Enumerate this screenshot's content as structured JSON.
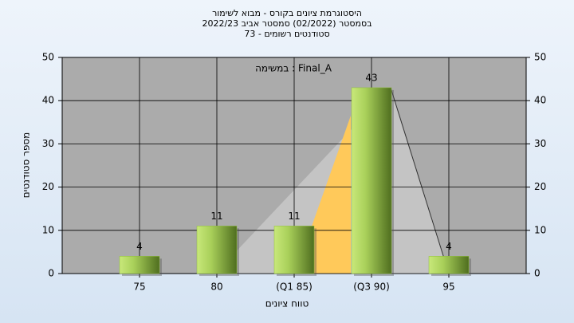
{
  "chart_data": {
    "type": "bar",
    "title_lines": [
      "היסטוגרמת ציונים בקורס - מבוא לשימור",
      "בסמסטר  (02/2022)  סמסטר אביב 2022/23",
      "סטודנטים רשומים - 73"
    ],
    "annotation": "במשימה : Final_A",
    "x_label": "טווח ציונים",
    "y_label": "מספר סטודנטים",
    "categories": [
      "75",
      "80",
      "(Q1 85)",
      "(Q3 90)",
      "95"
    ],
    "values": [
      4,
      11,
      11,
      43,
      4
    ],
    "color": "#8fbf3a",
    "ylim": [
      0,
      50
    ],
    "yticks": [
      0,
      10,
      20,
      30,
      40,
      50
    ],
    "y2lim": [
      0,
      50
    ],
    "y2ticks": [
      0,
      10,
      20,
      30,
      40,
      50
    ],
    "grid": true
  }
}
